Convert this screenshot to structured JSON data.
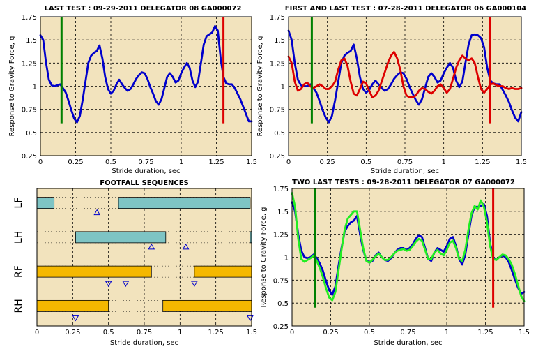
{
  "chart_data": [
    {
      "type": "line",
      "title": "LAST TEST : 09-29-2011 DELEGATOR 08 GA000072",
      "xlabel": "Stride duration, sec",
      "ylabel": "Response to Gravity Force, g",
      "xlim": [
        0,
        1.5
      ],
      "ylim": [
        0.25,
        1.75
      ],
      "xticks": [
        "0",
        "0.25",
        "0.5",
        "0.75",
        "1",
        "1.25",
        "1.5"
      ],
      "yticks": [
        "0.25",
        "0.5",
        "0.75",
        "1",
        "1.25",
        "1.5",
        "1.75"
      ],
      "grid": true,
      "series": [
        {
          "color": "#0000cc",
          "x": [
            0,
            0.02,
            0.04,
            0.06,
            0.08,
            0.1,
            0.12,
            0.14,
            0.16,
            0.18,
            0.2,
            0.22,
            0.24,
            0.26,
            0.28,
            0.3,
            0.32,
            0.34,
            0.36,
            0.38,
            0.4,
            0.42,
            0.44,
            0.46,
            0.48,
            0.5,
            0.52,
            0.54,
            0.56,
            0.58,
            0.6,
            0.62,
            0.64,
            0.66,
            0.68,
            0.7,
            0.72,
            0.74,
            0.76,
            0.78,
            0.8,
            0.82,
            0.84,
            0.86,
            0.88,
            0.9,
            0.92,
            0.94,
            0.96,
            0.98,
            1,
            1.02,
            1.04,
            1.06,
            1.08,
            1.1,
            1.12,
            1.14,
            1.16,
            1.18,
            1.2,
            1.22,
            1.24,
            1.26,
            1.28,
            1.3,
            1.32,
            1.34,
            1.36,
            1.38,
            1.4,
            1.42,
            1.44,
            1.46,
            1.48,
            1.5
          ],
          "y": [
            1.55,
            1.5,
            1.25,
            1.07,
            1.01,
            1.0,
            1.01,
            1.02,
            0.98,
            0.93,
            0.84,
            0.74,
            0.65,
            0.61,
            0.68,
            0.85,
            1.05,
            1.25,
            1.33,
            1.36,
            1.38,
            1.44,
            1.3,
            1.1,
            0.97,
            0.92,
            0.95,
            1.02,
            1.07,
            1.02,
            0.98,
            0.95,
            0.97,
            1.02,
            1.08,
            1.12,
            1.15,
            1.14,
            1.08,
            0.99,
            0.92,
            0.84,
            0.8,
            0.86,
            0.98,
            1.1,
            1.14,
            1.1,
            1.04,
            1.06,
            1.14,
            1.2,
            1.25,
            1.2,
            1.06,
            0.99,
            1.05,
            1.25,
            1.45,
            1.54,
            1.56,
            1.58,
            1.65,
            1.6,
            1.3,
            1.1,
            1.03,
            1.02,
            1.02,
            0.98,
            0.92,
            0.86,
            0.78,
            0.7,
            0.62,
            0.62
          ]
        }
      ],
      "vlines": [
        {
          "x": 0.15,
          "y1": 0.6,
          "y2": 1.75,
          "color": "#008000"
        },
        {
          "x": 1.3,
          "y1": 0.6,
          "y2": 1.75,
          "color": "#dd0000"
        }
      ]
    },
    {
      "type": "line",
      "title": "FIRST AND LAST TEST : 07-28-2011 DELEGATOR 06 GA000104",
      "xlabel": "Stride duration, sec",
      "ylabel": "Response to Gravity Force, g",
      "xlim": [
        0,
        1.5
      ],
      "ylim": [
        0.25,
        1.75
      ],
      "xticks": [
        "0",
        "0.25",
        "0.5",
        "0.75",
        "1",
        "1.25",
        "1.5"
      ],
      "yticks": [
        "0.25",
        "0.5",
        "0.75",
        "1",
        "1.25",
        "1.5",
        "1.75"
      ],
      "grid": true,
      "series": [
        {
          "color": "#0000cc",
          "x": [
            0,
            0.02,
            0.04,
            0.06,
            0.08,
            0.1,
            0.12,
            0.14,
            0.16,
            0.18,
            0.2,
            0.22,
            0.24,
            0.26,
            0.28,
            0.3,
            0.32,
            0.34,
            0.36,
            0.38,
            0.4,
            0.42,
            0.44,
            0.46,
            0.48,
            0.5,
            0.52,
            0.54,
            0.56,
            0.58,
            0.6,
            0.62,
            0.64,
            0.66,
            0.68,
            0.7,
            0.72,
            0.74,
            0.76,
            0.78,
            0.8,
            0.82,
            0.84,
            0.86,
            0.88,
            0.9,
            0.92,
            0.94,
            0.96,
            0.98,
            1,
            1.02,
            1.04,
            1.06,
            1.08,
            1.1,
            1.12,
            1.14,
            1.16,
            1.18,
            1.2,
            1.22,
            1.24,
            1.26,
            1.28,
            1.3,
            1.32,
            1.34,
            1.36,
            1.38,
            1.4,
            1.42,
            1.44,
            1.46,
            1.48,
            1.5
          ],
          "y": [
            1.6,
            1.5,
            1.25,
            1.07,
            1.01,
            1.0,
            1.0,
            1.02,
            0.98,
            0.93,
            0.84,
            0.74,
            0.66,
            0.61,
            0.68,
            0.85,
            1.05,
            1.25,
            1.33,
            1.36,
            1.38,
            1.45,
            1.3,
            1.1,
            0.97,
            0.93,
            0.96,
            1.02,
            1.06,
            1.02,
            0.98,
            0.95,
            0.97,
            1.02,
            1.08,
            1.12,
            1.15,
            1.14,
            1.08,
            0.99,
            0.92,
            0.85,
            0.8,
            0.86,
            0.98,
            1.1,
            1.14,
            1.1,
            1.04,
            1.06,
            1.14,
            1.2,
            1.25,
            1.2,
            1.06,
            0.99,
            1.05,
            1.25,
            1.45,
            1.55,
            1.56,
            1.55,
            1.52,
            1.42,
            1.2,
            1.06,
            1.03,
            1.02,
            1.02,
            0.96,
            0.9,
            0.83,
            0.74,
            0.66,
            0.62,
            0.72
          ]
        },
        {
          "color": "#dd0000",
          "x": [
            0,
            0.02,
            0.04,
            0.06,
            0.08,
            0.1,
            0.12,
            0.14,
            0.16,
            0.18,
            0.2,
            0.22,
            0.24,
            0.26,
            0.28,
            0.3,
            0.32,
            0.34,
            0.36,
            0.38,
            0.4,
            0.42,
            0.44,
            0.46,
            0.48,
            0.5,
            0.52,
            0.54,
            0.56,
            0.58,
            0.6,
            0.62,
            0.64,
            0.66,
            0.68,
            0.7,
            0.72,
            0.74,
            0.76,
            0.78,
            0.8,
            0.82,
            0.84,
            0.86,
            0.88,
            0.9,
            0.92,
            0.94,
            0.96,
            0.98,
            1,
            1.02,
            1.04,
            1.06,
            1.08,
            1.1,
            1.12,
            1.14,
            1.16,
            1.18,
            1.2,
            1.22,
            1.24,
            1.26,
            1.28,
            1.3,
            1.32,
            1.34,
            1.36,
            1.38,
            1.4,
            1.42,
            1.44,
            1.46,
            1.48,
            1.5
          ],
          "y": [
            1.32,
            1.25,
            1.05,
            0.95,
            0.97,
            1.02,
            1.04,
            1.0,
            0.98,
            1.0,
            1.02,
            1.0,
            0.97,
            0.97,
            1.0,
            1.05,
            1.18,
            1.28,
            1.3,
            1.22,
            1.05,
            0.92,
            0.9,
            0.97,
            1.05,
            1.03,
            0.95,
            0.88,
            0.9,
            0.95,
            1.05,
            1.15,
            1.25,
            1.33,
            1.37,
            1.3,
            1.18,
            1.0,
            0.9,
            0.88,
            0.88,
            0.9,
            0.95,
            0.98,
            0.97,
            0.94,
            0.92,
            0.95,
            1.0,
            1.02,
            0.98,
            0.93,
            0.97,
            1.08,
            1.2,
            1.28,
            1.33,
            1.3,
            1.28,
            1.3,
            1.25,
            1.1,
            0.97,
            0.93,
            0.97,
            1.02,
            1.03,
            1.01,
            1.0,
            1.0,
            0.98,
            0.97,
            0.98,
            0.97,
            0.97,
            0.98
          ]
        }
      ],
      "vlines": [
        {
          "x": 0.15,
          "y1": 0.6,
          "y2": 1.75,
          "color": "#008000"
        },
        {
          "x": 1.3,
          "y1": 0.6,
          "y2": 1.75,
          "color": "#dd0000"
        }
      ]
    },
    {
      "type": "gantt",
      "title": "FOOTFALL SEQUENCES",
      "xlabel": "Stride duration, sec",
      "xlim": [
        0,
        1.5
      ],
      "xticks": [
        "0",
        "0.25",
        "0.5",
        "0.75",
        "1",
        "1.25",
        "1.5"
      ],
      "rows": [
        "LF",
        "LH",
        "RF",
        "RH"
      ],
      "bars": [
        {
          "row": 0,
          "start": 0,
          "end": 0.12,
          "color": "#7ec4c4"
        },
        {
          "row": 0,
          "start": 0.57,
          "end": 1.49,
          "color": "#7ec4c4"
        },
        {
          "row": 1,
          "start": 0.27,
          "end": 0.9,
          "color": "#7ec4c4"
        },
        {
          "row": 1,
          "start": 1.49,
          "end": 1.5,
          "color": "#7ec4c4"
        },
        {
          "row": 2,
          "start": 0,
          "end": 0.8,
          "color": "#f5b800"
        },
        {
          "row": 2,
          "start": 1.1,
          "end": 1.5,
          "color": "#f5b800"
        },
        {
          "row": 3,
          "start": 0,
          "end": 0.5,
          "color": "#f5b800"
        },
        {
          "row": 3,
          "start": 0.88,
          "end": 1.5,
          "color": "#f5b800"
        }
      ],
      "markers": [
        {
          "x": 0.42,
          "row": 0,
          "dir": "up"
        },
        {
          "x": 0.8,
          "row": 1,
          "dir": "up"
        },
        {
          "x": 1.04,
          "row": 1,
          "dir": "up"
        },
        {
          "x": 0.5,
          "row": 2,
          "dir": "down"
        },
        {
          "x": 0.62,
          "row": 2,
          "dir": "down"
        },
        {
          "x": 1.1,
          "row": 2,
          "dir": "down"
        },
        {
          "x": 0.27,
          "row": 3,
          "dir": "down"
        },
        {
          "x": 1.49,
          "row": 3,
          "dir": "down"
        }
      ]
    },
    {
      "type": "line",
      "title": "TWO LAST TESTS : 09-28-2011 DELEGATOR 07 GA000072",
      "xlabel": "Stride duration, sec",
      "ylabel": "Response to Gravity Force, g",
      "xlim": [
        0,
        1.5
      ],
      "ylim": [
        0.25,
        1.75
      ],
      "xticks": [
        "0",
        "0.25",
        "0.5",
        "0.75",
        "1",
        "1.25",
        "1.5"
      ],
      "yticks": [
        "0.25",
        "0.5",
        "0.75",
        "1",
        "1.25",
        "1.5",
        "1.75"
      ],
      "grid": true,
      "series": [
        {
          "color": "#0000cc",
          "x": [
            0,
            0.02,
            0.04,
            0.06,
            0.08,
            0.1,
            0.12,
            0.14,
            0.16,
            0.18,
            0.2,
            0.22,
            0.24,
            0.26,
            0.28,
            0.3,
            0.32,
            0.34,
            0.36,
            0.38,
            0.4,
            0.42,
            0.44,
            0.46,
            0.48,
            0.5,
            0.52,
            0.54,
            0.56,
            0.58,
            0.6,
            0.62,
            0.64,
            0.66,
            0.68,
            0.7,
            0.72,
            0.74,
            0.76,
            0.78,
            0.8,
            0.82,
            0.84,
            0.86,
            0.88,
            0.9,
            0.92,
            0.94,
            0.96,
            0.98,
            1,
            1.02,
            1.04,
            1.06,
            1.08,
            1.1,
            1.12,
            1.14,
            1.16,
            1.18,
            1.2,
            1.22,
            1.24,
            1.26,
            1.28,
            1.3,
            1.32,
            1.34,
            1.36,
            1.38,
            1.4,
            1.42,
            1.44,
            1.46,
            1.48,
            1.5
          ],
          "y": [
            1.6,
            1.5,
            1.25,
            1.07,
            1.0,
            0.99,
            1.0,
            1.03,
            0.99,
            0.93,
            0.85,
            0.74,
            0.64,
            0.59,
            0.68,
            0.9,
            1.1,
            1.28,
            1.34,
            1.38,
            1.4,
            1.45,
            1.25,
            1.08,
            0.97,
            0.94,
            0.96,
            1.02,
            1.05,
            1.0,
            0.97,
            0.96,
            0.99,
            1.04,
            1.08,
            1.1,
            1.1,
            1.08,
            1.1,
            1.14,
            1.2,
            1.24,
            1.22,
            1.1,
            0.98,
            0.96,
            1.05,
            1.1,
            1.08,
            1.06,
            1.12,
            1.2,
            1.22,
            1.12,
            0.98,
            0.92,
            1.03,
            1.25,
            1.45,
            1.55,
            1.55,
            1.56,
            1.58,
            1.45,
            1.15,
            1.0,
            0.97,
            1.0,
            1.02,
            1.0,
            0.95,
            0.86,
            0.76,
            0.67,
            0.6,
            0.62
          ]
        },
        {
          "color": "#22ee22",
          "x": [
            0,
            0.02,
            0.04,
            0.06,
            0.08,
            0.1,
            0.12,
            0.14,
            0.16,
            0.18,
            0.2,
            0.22,
            0.24,
            0.26,
            0.28,
            0.3,
            0.32,
            0.34,
            0.36,
            0.38,
            0.4,
            0.42,
            0.44,
            0.46,
            0.48,
            0.5,
            0.52,
            0.54,
            0.56,
            0.58,
            0.6,
            0.62,
            0.64,
            0.66,
            0.68,
            0.7,
            0.72,
            0.74,
            0.76,
            0.78,
            0.8,
            0.82,
            0.84,
            0.86,
            0.88,
            0.9,
            0.92,
            0.94,
            0.96,
            0.98,
            1,
            1.02,
            1.04,
            1.06,
            1.08,
            1.1,
            1.12,
            1.14,
            1.16,
            1.18,
            1.2,
            1.22,
            1.24,
            1.26,
            1.28,
            1.3,
            1.32,
            1.34,
            1.36,
            1.38,
            1.4,
            1.42,
            1.44,
            1.46,
            1.48,
            1.5
          ],
          "y": [
            1.7,
            1.55,
            1.2,
            0.98,
            0.95,
            0.97,
            0.99,
            1.02,
            0.96,
            0.88,
            0.78,
            0.66,
            0.56,
            0.53,
            0.62,
            0.85,
            1.08,
            1.3,
            1.42,
            1.46,
            1.5,
            1.5,
            1.3,
            1.1,
            0.96,
            0.94,
            0.97,
            1.01,
            1.04,
            1.0,
            0.97,
            0.97,
            1.0,
            1.04,
            1.07,
            1.08,
            1.09,
            1.07,
            1.08,
            1.12,
            1.17,
            1.2,
            1.18,
            1.08,
            0.98,
            0.98,
            1.05,
            1.08,
            1.04,
            1.02,
            1.08,
            1.16,
            1.18,
            1.1,
            0.98,
            0.96,
            1.08,
            1.3,
            1.48,
            1.56,
            1.52,
            1.62,
            1.55,
            1.38,
            1.12,
            0.98,
            0.97,
            1.0,
            1.03,
            1.02,
            0.98,
            0.92,
            0.82,
            0.7,
            0.58,
            0.52
          ]
        }
      ],
      "vlines": [
        {
          "x": 0.15,
          "y1": 0.45,
          "y2": 1.75,
          "color": "#008000"
        },
        {
          "x": 1.3,
          "y1": 0.45,
          "y2": 1.75,
          "color": "#dd0000"
        }
      ]
    }
  ]
}
